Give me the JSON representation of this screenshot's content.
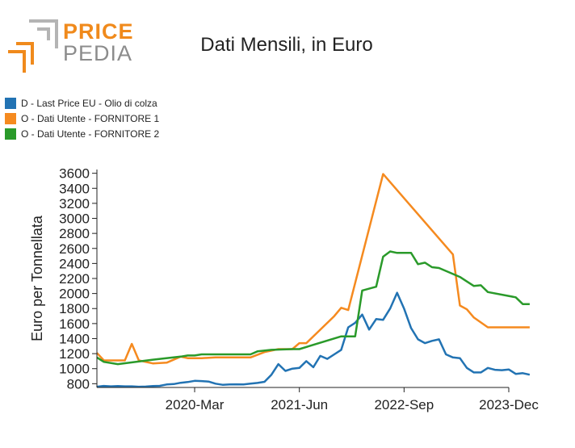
{
  "logo": {
    "word1": "PRICE",
    "word2": "PEDIA",
    "colors": {
      "orange": "#f08a1c",
      "gray": "#b4b4b4"
    }
  },
  "chart_data": {
    "type": "line",
    "title": "Dati Mensili, in Euro",
    "xlabel": "",
    "ylabel": "Euro per Tonnellata",
    "ylim": [
      750,
      3650
    ],
    "yticks": [
      800,
      1000,
      1200,
      1400,
      1600,
      1800,
      2000,
      2200,
      2400,
      2600,
      2800,
      3000,
      3200,
      3400,
      3600
    ],
    "x_range": [
      "2019-01",
      "2023-12"
    ],
    "xticks": [
      {
        "label": "2020-Mar",
        "x": "2020-03"
      },
      {
        "label": "2021-Jun",
        "x": "2021-06"
      },
      {
        "label": "2022-Sep",
        "x": "2022-09"
      },
      {
        "label": "2023-Dec",
        "x": "2023-12"
      }
    ],
    "grid": false,
    "legend_position": "top-left",
    "series": [
      {
        "name": "D - Last Price EU - Olio di colza",
        "color": "#2273b3",
        "points": [
          [
            "2019-01",
            760
          ],
          [
            "2019-02",
            770
          ],
          [
            "2019-03",
            765
          ],
          [
            "2019-04",
            768
          ],
          [
            "2019-05",
            765
          ],
          [
            "2019-06",
            765
          ],
          [
            "2019-07",
            760
          ],
          [
            "2019-08",
            762
          ],
          [
            "2019-09",
            768
          ],
          [
            "2019-10",
            772
          ],
          [
            "2019-11",
            790
          ],
          [
            "2019-12",
            795
          ],
          [
            "2020-01",
            812
          ],
          [
            "2020-02",
            822
          ],
          [
            "2020-03",
            838
          ],
          [
            "2020-04",
            835
          ],
          [
            "2020-05",
            828
          ],
          [
            "2020-06",
            800
          ],
          [
            "2020-07",
            785
          ],
          [
            "2020-08",
            790
          ],
          [
            "2020-09",
            792
          ],
          [
            "2020-10",
            790
          ],
          [
            "2020-11",
            800
          ],
          [
            "2020-12",
            810
          ],
          [
            "2021-01",
            825
          ],
          [
            "2021-02",
            920
          ],
          [
            "2021-03",
            1060
          ],
          [
            "2021-04",
            970
          ],
          [
            "2021-05",
            1000
          ],
          [
            "2021-06",
            1010
          ],
          [
            "2021-07",
            1100
          ],
          [
            "2021-08",
            1020
          ],
          [
            "2021-09",
            1170
          ],
          [
            "2021-10",
            1130
          ],
          [
            "2021-11",
            1190
          ],
          [
            "2021-12",
            1250
          ],
          [
            "2022-01",
            1550
          ],
          [
            "2022-02",
            1610
          ],
          [
            "2022-03",
            1720
          ],
          [
            "2022-04",
            1520
          ],
          [
            "2022-05",
            1660
          ],
          [
            "2022-06",
            1650
          ],
          [
            "2022-07",
            1800
          ],
          [
            "2022-08",
            2010
          ],
          [
            "2022-09",
            1800
          ],
          [
            "2022-10",
            1540
          ],
          [
            "2022-11",
            1390
          ],
          [
            "2022-12",
            1340
          ],
          [
            "2023-01",
            1370
          ],
          [
            "2023-02",
            1390
          ],
          [
            "2023-03",
            1190
          ],
          [
            "2023-04",
            1150
          ],
          [
            "2023-05",
            1140
          ],
          [
            "2023-06",
            1010
          ],
          [
            "2023-07",
            950
          ],
          [
            "2023-08",
            950
          ],
          [
            "2023-09",
            1010
          ],
          [
            "2023-10",
            985
          ],
          [
            "2023-11",
            980
          ],
          [
            "2023-12",
            990
          ],
          [
            "2024-01",
            930
          ],
          [
            "2024-02",
            940
          ],
          [
            "2024-03",
            920
          ]
        ]
      },
      {
        "name": "O - Dati Utente - FORNITORE 1",
        "color": "#f58a1f",
        "points": [
          [
            "2019-01",
            1210
          ],
          [
            "2019-02",
            1110
          ],
          [
            "2019-05",
            1110
          ],
          [
            "2019-06",
            1330
          ],
          [
            "2019-07",
            1110
          ],
          [
            "2019-09",
            1070
          ],
          [
            "2019-11",
            1080
          ],
          [
            "2020-01",
            1160
          ],
          [
            "2020-02",
            1140
          ],
          [
            "2020-04",
            1140
          ],
          [
            "2020-06",
            1150
          ],
          [
            "2020-08",
            1150
          ],
          [
            "2020-10",
            1150
          ],
          [
            "2020-11",
            1150
          ],
          [
            "2021-01",
            1220
          ],
          [
            "2021-03",
            1260
          ],
          [
            "2021-05",
            1260
          ],
          [
            "2021-06",
            1340
          ],
          [
            "2021-07",
            1340
          ],
          [
            "2021-11",
            1700
          ],
          [
            "2021-12",
            1810
          ],
          [
            "2022-01",
            1780
          ],
          [
            "2022-06",
            3590
          ],
          [
            "2023-04",
            2520
          ],
          [
            "2023-05",
            1840
          ],
          [
            "2023-06",
            1790
          ],
          [
            "2023-07",
            1680
          ],
          [
            "2023-09",
            1550
          ],
          [
            "2024-03",
            1550
          ]
        ]
      },
      {
        "name": "O - Dati Utente - FORNITORE 2",
        "color": "#2a9a2a",
        "points": [
          [
            "2019-01",
            1150
          ],
          [
            "2019-02",
            1090
          ],
          [
            "2019-04",
            1060
          ],
          [
            "2019-09",
            1120
          ],
          [
            "2020-01",
            1160
          ],
          [
            "2020-02",
            1175
          ],
          [
            "2020-03",
            1175
          ],
          [
            "2020-04",
            1190
          ],
          [
            "2020-06",
            1190
          ],
          [
            "2020-08",
            1190
          ],
          [
            "2020-11",
            1190
          ],
          [
            "2020-12",
            1230
          ],
          [
            "2021-02",
            1250
          ],
          [
            "2021-05",
            1260
          ],
          [
            "2021-06",
            1260
          ],
          [
            "2021-12",
            1430
          ],
          [
            "2022-02",
            1430
          ],
          [
            "2022-03",
            2040
          ],
          [
            "2022-05",
            2090
          ],
          [
            "2022-06",
            2490
          ],
          [
            "2022-07",
            2560
          ],
          [
            "2022-08",
            2540
          ],
          [
            "2022-10",
            2540
          ],
          [
            "2022-11",
            2390
          ],
          [
            "2022-12",
            2410
          ],
          [
            "2023-01",
            2350
          ],
          [
            "2023-02",
            2340
          ],
          [
            "2023-04",
            2260
          ],
          [
            "2023-05",
            2220
          ],
          [
            "2023-06",
            2160
          ],
          [
            "2023-07",
            2100
          ],
          [
            "2023-08",
            2110
          ],
          [
            "2023-09",
            2020
          ],
          [
            "2024-01",
            1950
          ],
          [
            "2024-02",
            1860
          ],
          [
            "2024-03",
            1860
          ]
        ]
      }
    ]
  }
}
